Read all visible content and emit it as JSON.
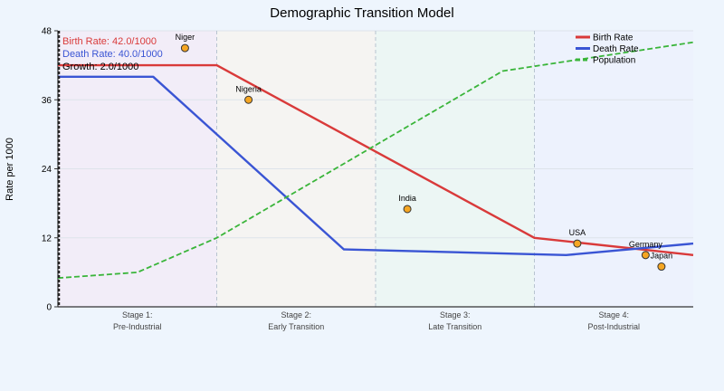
{
  "chart_data": {
    "type": "line",
    "title": "Demographic Transition Model",
    "ylabel": "Rate per 1000",
    "xlabel": "",
    "ylim": [
      0,
      48
    ],
    "yticks": [
      0,
      12,
      24,
      36,
      48
    ],
    "xlim": [
      0,
      4
    ],
    "grid": true,
    "legend_position": "top-right",
    "stages": [
      {
        "line1": "Stage 1:",
        "line2": "Pre-Industrial",
        "color": "#e7d7ee"
      },
      {
        "line1": "Stage 2:",
        "line2": "Early Transition",
        "color": "#f1ecdc"
      },
      {
        "line1": "Stage 3:",
        "line2": "Late Transition",
        "color": "#d7f0e1"
      },
      {
        "line1": "Stage 4:",
        "line2": "Post-Industrial",
        "color": "#dbe4fb"
      }
    ],
    "series": [
      {
        "name": "Birth Rate",
        "color": "#d93a3a",
        "dash": "solid",
        "x": [
          0,
          1,
          3,
          4
        ],
        "y": [
          42,
          42,
          12,
          9
        ]
      },
      {
        "name": "Death Rate",
        "color": "#3a55d4",
        "dash": "solid",
        "x": [
          0,
          0.6,
          1.8,
          3.2,
          4
        ],
        "y": [
          40,
          40,
          10,
          9,
          11
        ]
      },
      {
        "name": "Population",
        "color": "#3ab53a",
        "dash": "dashed",
        "x": [
          0,
          0.5,
          1,
          2.8,
          4
        ],
        "y": [
          5,
          6,
          12,
          41,
          46
        ]
      }
    ],
    "countries": [
      {
        "name": "Niger",
        "x": 0.8,
        "y": 45
      },
      {
        "name": "Nigeria",
        "x": 1.2,
        "y": 36
      },
      {
        "name": "India",
        "x": 2.2,
        "y": 17
      },
      {
        "name": "USA",
        "x": 3.27,
        "y": 11
      },
      {
        "name": "Germany",
        "x": 3.7,
        "y": 9
      },
      {
        "name": "Japan",
        "x": 3.8,
        "y": 7
      }
    ],
    "marker_color": "#f5a623",
    "readout": {
      "birth": "Birth Rate: 42.0/1000",
      "death": "Death Rate: 40.0/1000",
      "growth": "Growth: 2.0/1000"
    }
  }
}
